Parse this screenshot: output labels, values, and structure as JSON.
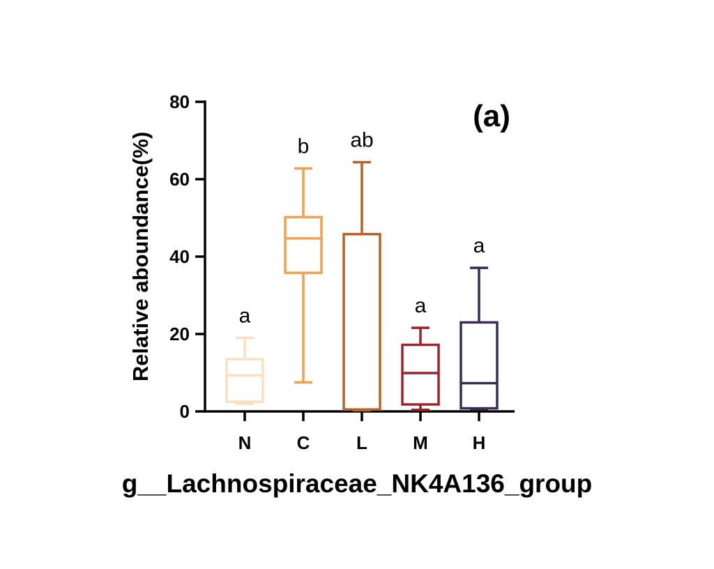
{
  "chart_data": {
    "type": "box",
    "panel_label": "(a)",
    "title": "g__Lachnospiraceae_NK4A136_group",
    "ylabel": "Relative aboundance(%)",
    "xlabel": "g__Lachnospiraceae_NK4A136_group",
    "ylim": [
      0,
      80
    ],
    "yticks": [
      0,
      20,
      40,
      60,
      80
    ],
    "grid": false,
    "categories": [
      "N",
      "C",
      "L",
      "M",
      "H"
    ],
    "boxes": [
      {
        "category": "N",
        "min": 2.0,
        "q1": 2.5,
        "median": 9.3,
        "q3": 13.5,
        "max": 19.0,
        "significance": "a",
        "color": "#fbdfc2"
      },
      {
        "category": "C",
        "min": 7.5,
        "q1": 35.8,
        "median": 44.7,
        "q3": 50.2,
        "max": 62.8,
        "significance": "b",
        "color": "#f0a24e"
      },
      {
        "category": "L",
        "min": 0.3,
        "q1": 0.5,
        "median": 45.8,
        "q3": 45.8,
        "max": 64.4,
        "significance": "ab",
        "color": "#b5652b"
      },
      {
        "category": "M",
        "min": 0.4,
        "q1": 1.8,
        "median": 9.9,
        "q3": 17.2,
        "max": 21.6,
        "significance": "a",
        "color": "#9e232d"
      },
      {
        "category": "H",
        "min": 0.6,
        "q1": 0.8,
        "median": 7.3,
        "q3": 23.0,
        "max": 37.1,
        "significance": "a",
        "color": "#3b2b55"
      }
    ]
  }
}
